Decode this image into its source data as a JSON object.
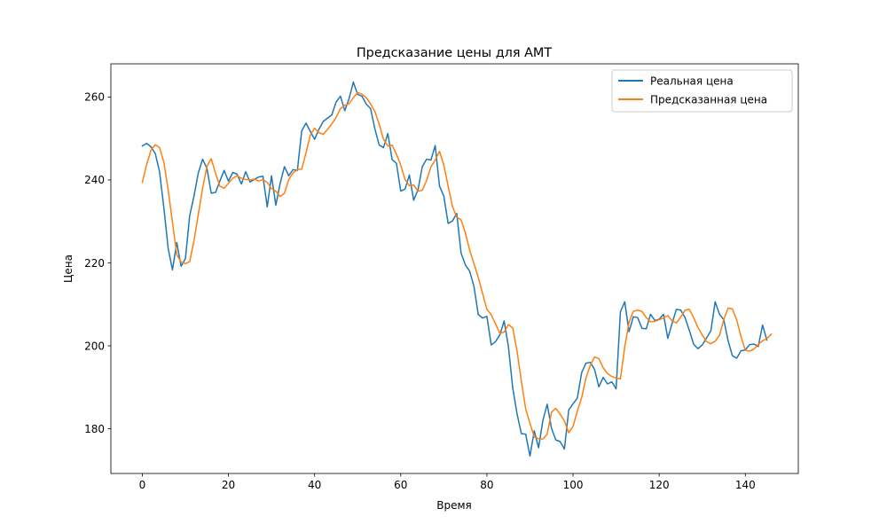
{
  "chart_data": {
    "type": "line",
    "title": "Предсказание цены для AMT",
    "xlabel": "Время",
    "ylabel": "Цена",
    "xlim": [
      -7.3,
      152.3
    ],
    "ylim": [
      169.2,
      268.0
    ],
    "xticks": [
      0,
      20,
      40,
      60,
      80,
      100,
      120,
      140
    ],
    "yticks": [
      180,
      200,
      220,
      240,
      260
    ],
    "grid": false,
    "legend_position": "top-right",
    "series": [
      {
        "name": "Реальная цена",
        "color": "#1f77b4",
        "values": [
          248.2,
          248.8,
          248.0,
          246.4,
          242.0,
          233.3,
          223.5,
          218.3,
          224.9,
          219.2,
          221.0,
          231.4,
          236.1,
          241.7,
          245.0,
          242.8,
          236.8,
          237.0,
          239.7,
          242.3,
          239.7,
          241.8,
          241.4,
          239.0,
          242.0,
          239.5,
          240.1,
          240.7,
          240.9,
          233.5,
          241.0,
          233.9,
          239.2,
          243.2,
          241.0,
          242.5,
          242.3,
          251.8,
          253.7,
          251.7,
          249.8,
          252.2,
          254.1,
          254.9,
          255.7,
          258.8,
          260.2,
          256.7,
          259.6,
          263.6,
          260.6,
          260.2,
          258.3,
          257.2,
          252.3,
          248.4,
          247.8,
          251.2,
          244.9,
          244.0,
          237.3,
          237.8,
          241.2,
          235.1,
          237.6,
          243.2,
          245.0,
          244.8,
          248.3,
          238.5,
          236.1,
          229.5,
          230.1,
          231.9,
          222.4,
          219.5,
          218.0,
          214.3,
          207.5,
          206.7,
          207.1,
          200.2,
          201.0,
          202.6,
          206.0,
          199.8,
          189.8,
          183.6,
          178.8,
          178.7,
          173.4,
          179.5,
          175.4,
          182.0,
          185.9,
          180.1,
          177.3,
          176.9,
          175.1,
          184.5,
          186.0,
          187.4,
          193.5,
          195.8,
          196.0,
          194.3,
          190.1,
          192.4,
          190.8,
          191.3,
          189.6,
          208.2,
          210.6,
          203.4,
          207.0,
          206.8,
          204.2,
          204.1,
          207.6,
          206.1,
          206.4,
          207.6,
          201.8,
          205.4,
          208.8,
          208.6,
          206.8,
          203.7,
          200.4,
          199.3,
          200.2,
          201.9,
          203.6,
          210.6,
          207.6,
          206.3,
          201.2,
          197.6,
          197.0,
          198.8,
          199.0,
          200.3,
          200.4,
          199.8,
          205.0,
          201.4
        ]
      },
      {
        "name": "Предсказанная цена",
        "color": "#ff7f0e",
        "values": [
          239.4,
          243.7,
          247.1,
          248.5,
          247.8,
          244.3,
          237.6,
          229.8,
          222.0,
          220.2,
          219.8,
          220.3,
          225.4,
          231.7,
          238.0,
          243.3,
          245.1,
          241.6,
          238.5,
          238.0,
          239.2,
          240.4,
          241.0,
          240.4,
          240.1,
          240.0,
          240.2,
          239.7,
          240.1,
          239.4,
          237.9,
          237.3,
          236.0,
          236.8,
          240.1,
          241.7,
          242.5,
          242.6,
          246.5,
          250.8,
          252.5,
          251.4,
          251.0,
          252.2,
          253.5,
          255.1,
          257.2,
          258.0,
          258.4,
          259.8,
          261.1,
          260.7,
          259.8,
          258.3,
          256.5,
          253.4,
          249.8,
          248.2,
          248.4,
          246.2,
          243.6,
          240.1,
          238.6,
          238.8,
          237.3,
          237.5,
          239.9,
          243.1,
          244.8,
          246.9,
          243.6,
          238.5,
          233.6,
          231.0,
          230.4,
          227.2,
          223.1,
          219.8,
          216.5,
          212.6,
          208.8,
          207.5,
          205.3,
          203.0,
          203.3,
          205.1,
          204.3,
          198.7,
          191.5,
          184.8,
          181.3,
          178.0,
          177.6,
          177.5,
          178.7,
          184.0,
          184.9,
          183.5,
          181.9,
          179.0,
          180.6,
          184.2,
          187.5,
          192.2,
          195.3,
          197.3,
          196.9,
          194.7,
          193.3,
          192.6,
          192.2,
          192.0,
          199.7,
          205.7,
          208.3,
          208.6,
          208.3,
          206.8,
          205.8,
          205.9,
          206.3,
          206.7,
          207.3,
          206.0,
          205.5,
          206.9,
          208.6,
          208.8,
          206.8,
          204.4,
          202.6,
          201.0,
          200.5,
          201.1,
          202.5,
          206.3,
          209.1,
          208.9,
          206.2,
          202.2,
          198.9,
          198.7,
          199.2,
          200.3,
          201.2,
          201.7,
          202.8
        ]
      }
    ]
  }
}
